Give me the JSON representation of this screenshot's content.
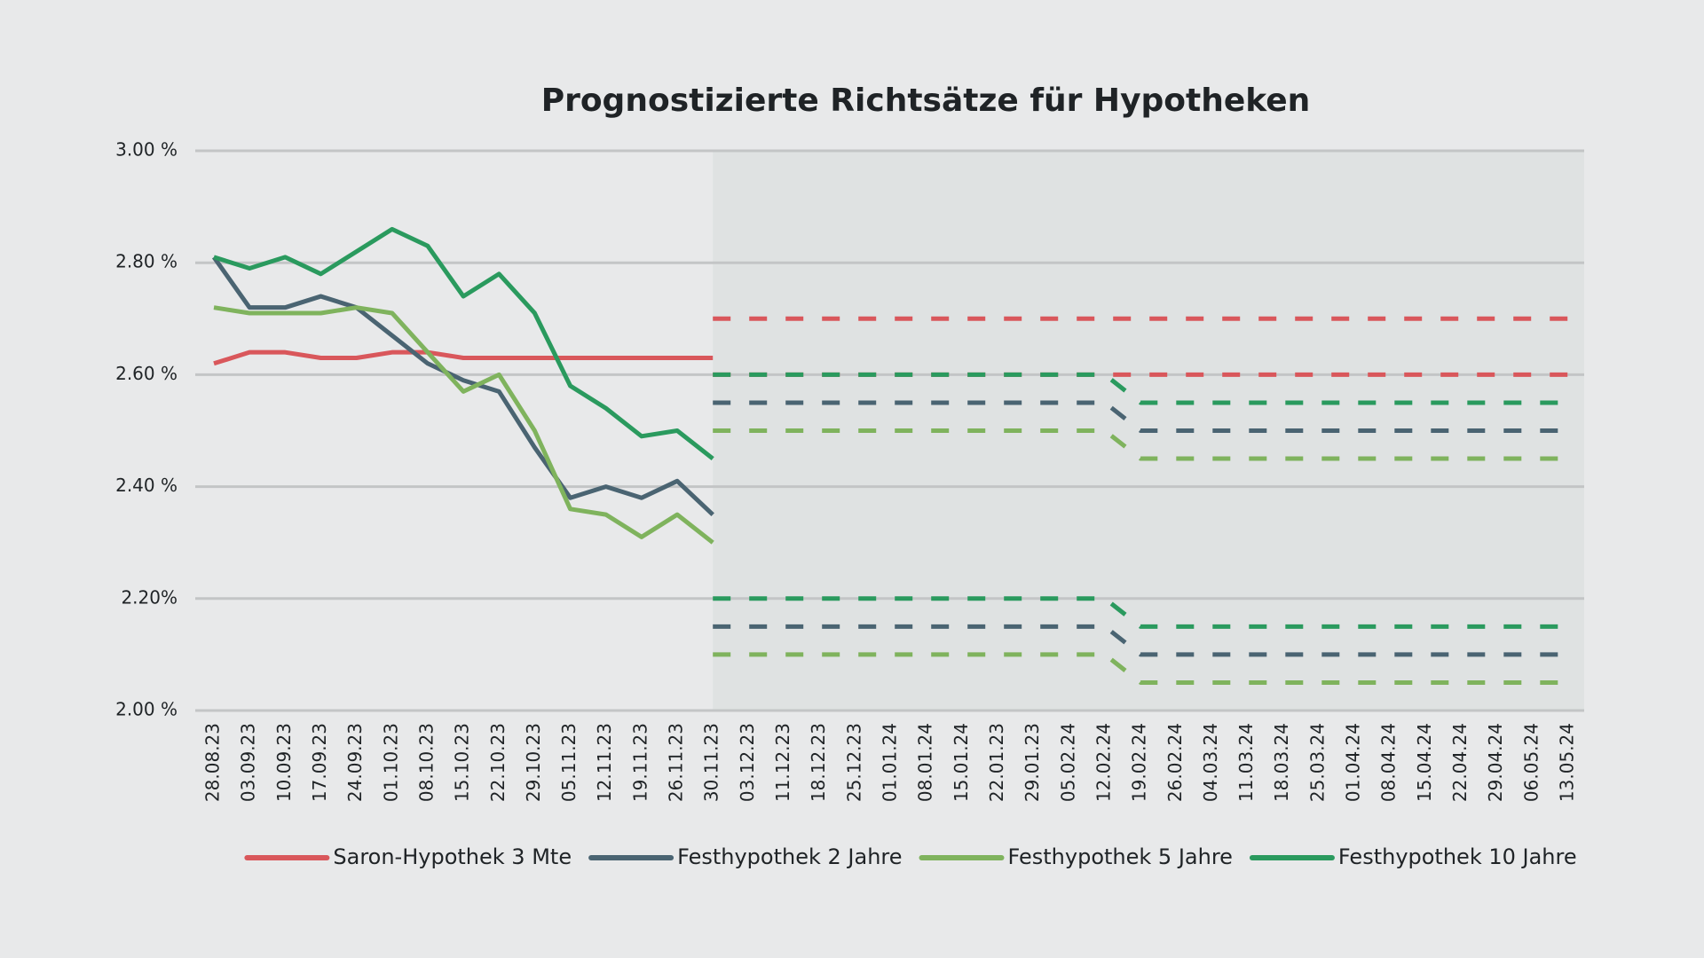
{
  "chart_data": {
    "type": "line",
    "title": "Prognostizierte Richtsätze für Hypotheken",
    "categories": [
      "28.08.23",
      "03.09.23",
      "10.09.23",
      "17.09.23",
      "24.09.23",
      "01.10.23",
      "08.10.23",
      "15.10.23",
      "22.10.23",
      "29.10.23",
      "05.11.23",
      "12.11.23",
      "19.11.23",
      "26.11.23",
      "30.11.23",
      "03.12.23",
      "11.12.23",
      "18.12.23",
      "25.12.23",
      "01.01.24",
      "08.01.24",
      "15.01.24",
      "22.01.23",
      "29.01.23",
      "05.02.24",
      "12.02.24",
      "19.02.24",
      "26.02.24",
      "04.03.24",
      "11.03.24",
      "18.03.24",
      "25.03.24",
      "01.04.24",
      "08.04.24",
      "15.04.24",
      "22.04.24",
      "29.04.24",
      "06.05.24",
      "13.05.24"
    ],
    "ylim": [
      2,
      3
    ],
    "yticks": [
      {
        "value": 2,
        "label": "2.00 %"
      },
      {
        "value": 2.2,
        "label": "2.20%"
      },
      {
        "value": 2.4,
        "label": "2.40 %"
      },
      {
        "value": 2.6,
        "label": "2.60 %"
      },
      {
        "value": 2.8,
        "label": "2.80 %"
      },
      {
        "value": 3,
        "label": "3.00 %"
      }
    ],
    "grid": true,
    "legend": "bottom",
    "series": [
      {
        "name": "Saron-Hypothek 3 Mte",
        "color": "#d9575b",
        "values": [
          2.62,
          2.64,
          2.64,
          2.63,
          2.63,
          2.64,
          2.64,
          2.63,
          2.63,
          2.63,
          2.63,
          2.63,
          2.63,
          2.63,
          2.63,
          null,
          null,
          null,
          null,
          null,
          null,
          null,
          null,
          null,
          null,
          null,
          null,
          null,
          null,
          null,
          null,
          null,
          null,
          null,
          null,
          null,
          null,
          null,
          null
        ],
        "forecast_high": [
          null,
          null,
          null,
          null,
          null,
          null,
          null,
          null,
          null,
          null,
          null,
          null,
          null,
          null,
          2.7,
          2.7,
          2.7,
          2.7,
          2.7,
          2.7,
          2.7,
          2.7,
          2.7,
          2.7,
          2.7,
          2.7,
          2.7,
          2.7,
          2.7,
          2.7,
          2.7,
          2.7,
          2.7,
          2.7,
          2.7,
          2.7,
          2.7,
          2.7,
          2.7
        ],
        "forecast_low": [
          null,
          null,
          null,
          null,
          null,
          null,
          null,
          null,
          null,
          null,
          null,
          null,
          null,
          null,
          2.6,
          2.6,
          2.6,
          2.6,
          2.6,
          2.6,
          2.6,
          2.6,
          2.6,
          2.6,
          2.6,
          2.6,
          2.6,
          2.6,
          2.6,
          2.6,
          2.6,
          2.6,
          2.6,
          2.6,
          2.6,
          2.6,
          2.6,
          2.6,
          2.6
        ]
      },
      {
        "name": "Festhypothek 2 Jahre",
        "color": "#4a6472",
        "values": [
          2.81,
          2.72,
          2.72,
          2.74,
          2.72,
          2.67,
          2.62,
          2.59,
          2.57,
          2.47,
          2.38,
          2.4,
          2.38,
          2.41,
          2.35,
          null,
          null,
          null,
          null,
          null,
          null,
          null,
          null,
          null,
          null,
          null,
          null,
          null,
          null,
          null,
          null,
          null,
          null,
          null,
          null,
          null,
          null,
          null,
          null
        ],
        "forecast_high": [
          null,
          null,
          null,
          null,
          null,
          null,
          null,
          null,
          null,
          null,
          null,
          null,
          null,
          null,
          2.55,
          2.55,
          2.55,
          2.55,
          2.55,
          2.55,
          2.55,
          2.55,
          2.55,
          2.55,
          2.55,
          2.55,
          2.5,
          2.5,
          2.5,
          2.5,
          2.5,
          2.5,
          2.5,
          2.5,
          2.5,
          2.5,
          2.5,
          2.5,
          2.5
        ],
        "forecast_low": [
          null,
          null,
          null,
          null,
          null,
          null,
          null,
          null,
          null,
          null,
          null,
          null,
          null,
          null,
          2.15,
          2.15,
          2.15,
          2.15,
          2.15,
          2.15,
          2.15,
          2.15,
          2.15,
          2.15,
          2.15,
          2.15,
          2.1,
          2.1,
          2.1,
          2.1,
          2.1,
          2.1,
          2.1,
          2.1,
          2.1,
          2.1,
          2.1,
          2.1,
          2.1
        ]
      },
      {
        "name": "Festhypothek 5 Jahre",
        "color": "#7fb35d",
        "values": [
          2.72,
          2.71,
          2.71,
          2.71,
          2.72,
          2.71,
          2.64,
          2.57,
          2.6,
          2.5,
          2.36,
          2.35,
          2.31,
          2.35,
          2.3,
          null,
          null,
          null,
          null,
          null,
          null,
          null,
          null,
          null,
          null,
          null,
          null,
          null,
          null,
          null,
          null,
          null,
          null,
          null,
          null,
          null,
          null,
          null,
          null
        ],
        "forecast_high": [
          null,
          null,
          null,
          null,
          null,
          null,
          null,
          null,
          null,
          null,
          null,
          null,
          null,
          null,
          2.5,
          2.5,
          2.5,
          2.5,
          2.5,
          2.5,
          2.5,
          2.5,
          2.5,
          2.5,
          2.5,
          2.5,
          2.45,
          2.45,
          2.45,
          2.45,
          2.45,
          2.45,
          2.45,
          2.45,
          2.45,
          2.45,
          2.45,
          2.45,
          2.45
        ],
        "forecast_low": [
          null,
          null,
          null,
          null,
          null,
          null,
          null,
          null,
          null,
          null,
          null,
          null,
          null,
          null,
          2.1,
          2.1,
          2.1,
          2.1,
          2.1,
          2.1,
          2.1,
          2.1,
          2.1,
          2.1,
          2.1,
          2.1,
          2.05,
          2.05,
          2.05,
          2.05,
          2.05,
          2.05,
          2.05,
          2.05,
          2.05,
          2.05,
          2.05,
          2.05,
          2.05
        ]
      },
      {
        "name": "Festhypothek 10 Jahre",
        "color": "#2a9a5e",
        "values": [
          2.81,
          2.79,
          2.81,
          2.78,
          2.82,
          2.86,
          2.83,
          2.74,
          2.78,
          2.71,
          2.58,
          2.54,
          2.49,
          2.5,
          2.45,
          null,
          null,
          null,
          null,
          null,
          null,
          null,
          null,
          null,
          null,
          null,
          null,
          null,
          null,
          null,
          null,
          null,
          null,
          null,
          null,
          null,
          null,
          null,
          null
        ],
        "forecast_high": [
          null,
          null,
          null,
          null,
          null,
          null,
          null,
          null,
          null,
          null,
          null,
          null,
          null,
          null,
          2.6,
          2.6,
          2.6,
          2.6,
          2.6,
          2.6,
          2.6,
          2.6,
          2.6,
          2.6,
          2.6,
          2.6,
          2.55,
          2.55,
          2.55,
          2.55,
          2.55,
          2.55,
          2.55,
          2.55,
          2.55,
          2.55,
          2.55,
          2.55,
          2.55
        ],
        "forecast_low": [
          null,
          null,
          null,
          null,
          null,
          null,
          null,
          null,
          null,
          null,
          null,
          null,
          null,
          null,
          2.2,
          2.2,
          2.2,
          2.2,
          2.2,
          2.2,
          2.2,
          2.2,
          2.2,
          2.2,
          2.2,
          2.2,
          2.15,
          2.15,
          2.15,
          2.15,
          2.15,
          2.15,
          2.15,
          2.15,
          2.15,
          2.15,
          2.15,
          2.15,
          2.15
        ]
      }
    ]
  }
}
